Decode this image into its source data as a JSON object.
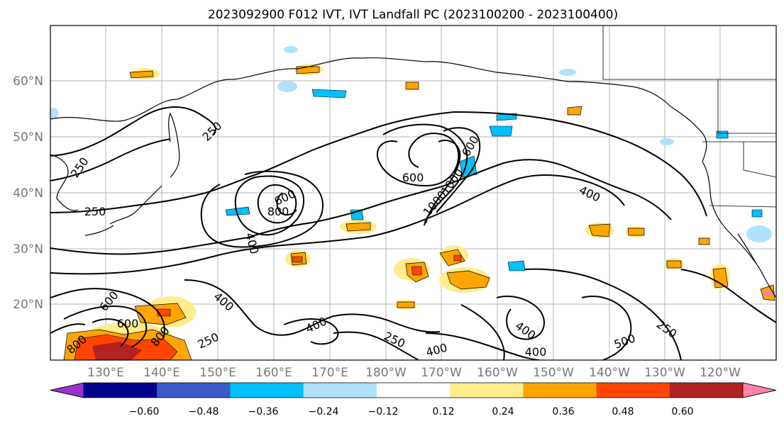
{
  "title": "2023092900 F012 IVT, IVT Landfall PC (2023100200 - 2023100400)",
  "map": {
    "lat_labels": [
      "20°N",
      "30°N",
      "40°N",
      "50°N",
      "60°N"
    ],
    "lon_labels": [
      "130°E",
      "140°E",
      "150°E",
      "160°E",
      "170°E",
      "180°W",
      "170°W",
      "160°W",
      "150°W",
      "140°W",
      "130°W",
      "120°W"
    ],
    "ivt_contour_labels": [
      "250",
      "250",
      "250",
      "250",
      "250",
      "400",
      "400",
      "400",
      "400",
      "400",
      "400",
      "400",
      "600",
      "600",
      "600",
      "600",
      "800",
      "800",
      "800",
      "1000",
      "1000",
      "250",
      "500",
      "600"
    ]
  },
  "colorbar": {
    "tick_labels": [
      "−0.60",
      "−0.48",
      "−0.36",
      "−0.24",
      "−0.12",
      "0.12",
      "0.24",
      "0.36",
      "0.48",
      "0.60"
    ],
    "colors": [
      "#9a32cd",
      "#00008b",
      "#3a5bc7",
      "#00bfff",
      "#b0e2ff",
      "#ffffff",
      "#ffec8b",
      "#ffa500",
      "#ff4500",
      "#b22222",
      "#ff82ab"
    ]
  }
}
